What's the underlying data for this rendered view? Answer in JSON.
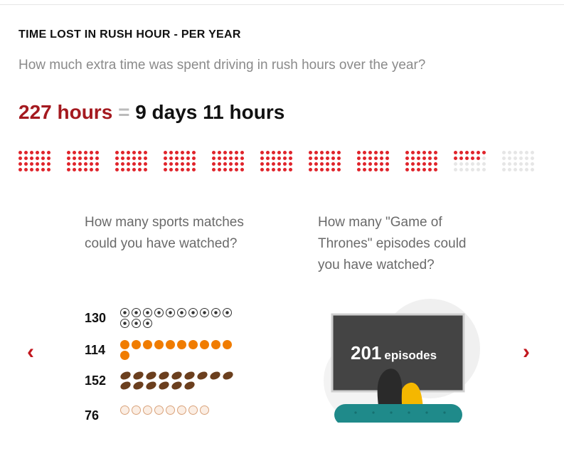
{
  "header": {
    "title": "TIME LOST IN RUSH HOUR - PER YEAR",
    "subtitle": "How much extra time was spent driving in rush hours over the year?"
  },
  "headline": {
    "hours": "227 hours",
    "equals": "=",
    "equivalent": "9 days 11 hours"
  },
  "dot_grid": {
    "total_hours": 227,
    "hours_per_block": 24,
    "total_blocks": 11,
    "filled_color": "#e0242b",
    "empty_color": "#e6e6e6"
  },
  "sports": {
    "question": "How many sports matches could you have watched?",
    "rows": [
      {
        "value": "130",
        "icon": "soccer-ball-icon",
        "count": 13
      },
      {
        "value": "114",
        "icon": "basketball-icon",
        "count": 11
      },
      {
        "value": "152",
        "icon": "american-football-icon",
        "count": 15
      },
      {
        "value": "76",
        "icon": "baseball-icon",
        "count": 8
      }
    ]
  },
  "got": {
    "question": "How many \"Game of Thrones\" episodes could you have watched?",
    "tv_value": "201",
    "tv_unit": "episodes"
  },
  "carousel": {
    "prev_icon": "chevron-left-icon",
    "next_icon": "chevron-right-icon",
    "prev_label": "‹",
    "next_label": "›"
  },
  "colors": {
    "accent_red": "#a4191f",
    "chevron_red": "#c2181f",
    "basketball_orange": "#f07c00",
    "football_brown": "#6b3f1e",
    "tv_screen": "#444444",
    "sofa_teal": "#1f8a8a"
  }
}
